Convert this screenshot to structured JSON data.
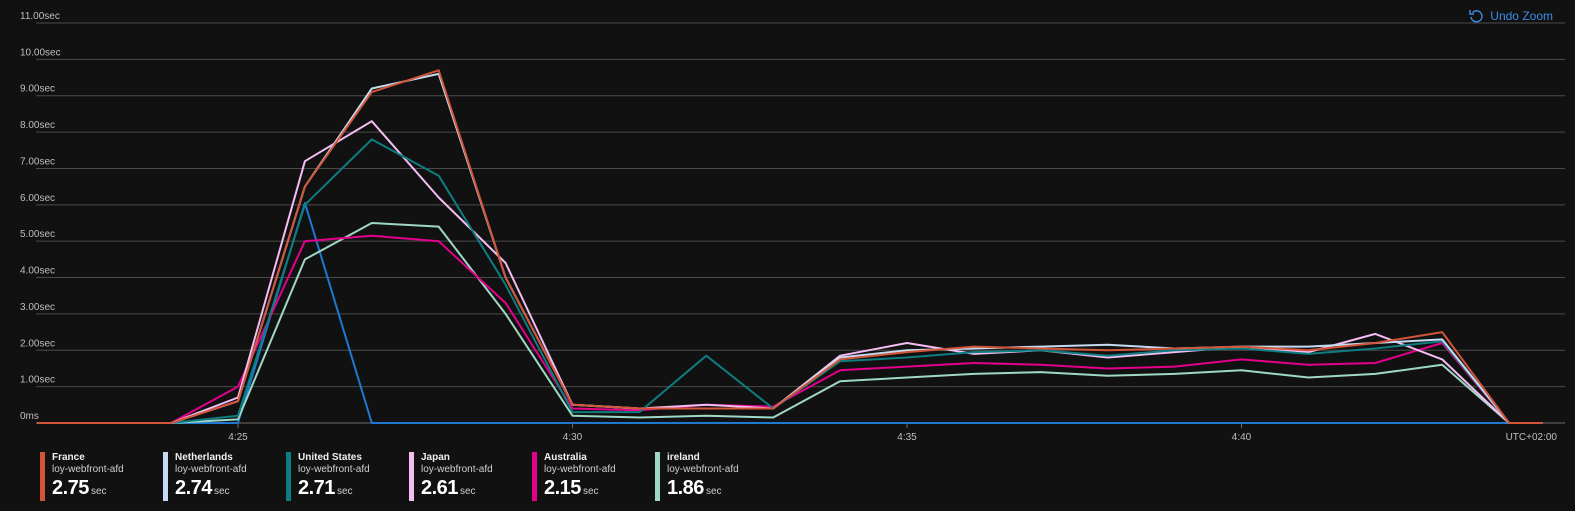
{
  "undo_zoom": {
    "label": "Undo Zoom",
    "icon": "undo-icon"
  },
  "chart_data": {
    "type": "line",
    "y_tick_labels": [
      "0ms",
      "1.00sec",
      "2.00sec",
      "3.00sec",
      "4.00sec",
      "5.00sec",
      "6.00sec",
      "7.00sec",
      "8.00sec",
      "9.00sec",
      "10.00sec",
      "11.00sec"
    ],
    "ylim": [
      0,
      11
    ],
    "x_tick_labels": [
      {
        "label": "4:25",
        "t": 25
      },
      {
        "label": "4:30",
        "t": 30
      },
      {
        "label": "4:35",
        "t": 35
      },
      {
        "label": "4:40",
        "t": 40
      }
    ],
    "timezone_label": "UTC+02:00",
    "x": [
      22,
      23,
      24,
      25,
      26,
      27,
      28,
      29,
      30,
      31,
      32,
      33,
      34,
      35,
      36,
      37,
      38,
      39,
      40,
      41,
      42,
      43,
      44,
      44.5
    ],
    "series": [
      {
        "name": "France",
        "resource": "loy-webfront-afd",
        "value": "2.75",
        "unit": "sec",
        "color": "#d2553a",
        "values": [
          0,
          0,
          0,
          0.6,
          6.5,
          9.1,
          9.7,
          4.0,
          0.5,
          0.4,
          0.4,
          0.4,
          1.75,
          1.95,
          2.1,
          2.05,
          2.0,
          2.05,
          2.1,
          2.0,
          2.2,
          2.5,
          0,
          0
        ]
      },
      {
        "name": "Netherlands",
        "resource": "loy-webfront-afd",
        "value": "2.74",
        "unit": "sec",
        "color": "#c5dbf2",
        "values": [
          0,
          0,
          0,
          0.6,
          6.5,
          9.2,
          9.6,
          4.0,
          0.5,
          0.4,
          0.4,
          0.4,
          1.8,
          2.0,
          2.05,
          2.1,
          2.15,
          2.05,
          2.1,
          2.1,
          2.2,
          2.3,
          0,
          0
        ]
      },
      {
        "name": "United States",
        "resource": "loy-webfront-afd",
        "value": "2.71",
        "unit": "sec",
        "color": "#0d7d80",
        "values": [
          0,
          0,
          0,
          0.2,
          6.0,
          7.8,
          6.8,
          3.8,
          0.3,
          0.3,
          1.85,
          0.4,
          1.7,
          1.8,
          1.95,
          2.0,
          1.85,
          2.0,
          2.05,
          1.9,
          2.05,
          2.25,
          0,
          0
        ]
      },
      {
        "name": "Japan",
        "resource": "loy-webfront-afd",
        "value": "2.61",
        "unit": "sec",
        "color": "#f4bdf2",
        "values": [
          0,
          0,
          0,
          0.7,
          7.2,
          8.3,
          6.2,
          4.4,
          0.5,
          0.4,
          0.5,
          0.4,
          1.85,
          2.2,
          1.9,
          2.0,
          1.8,
          1.95,
          2.1,
          1.95,
          2.45,
          1.75,
          0,
          0
        ]
      },
      {
        "name": "Australia",
        "resource": "loy-webfront-afd",
        "value": "2.15",
        "unit": "sec",
        "color": "#e3008c",
        "values": [
          0,
          0,
          0,
          1.0,
          5.0,
          5.15,
          5.0,
          3.3,
          0.4,
          0.35,
          0.5,
          0.45,
          1.45,
          1.55,
          1.65,
          1.6,
          1.5,
          1.55,
          1.75,
          1.6,
          1.65,
          2.2,
          0,
          0
        ]
      },
      {
        "name": "ireland",
        "resource": "loy-webfront-afd",
        "value": "1.86",
        "unit": "sec",
        "color": "#9fd8c3",
        "values": [
          0,
          0,
          0,
          0.1,
          4.5,
          5.5,
          5.4,
          3.0,
          0.2,
          0.15,
          0.2,
          0.15,
          1.15,
          1.25,
          1.35,
          1.4,
          1.3,
          1.35,
          1.45,
          1.25,
          1.35,
          1.6,
          0,
          0
        ]
      },
      {
        "color": "#1f78d1",
        "values": [
          0,
          0,
          0,
          0,
          6.05,
          0,
          0,
          0,
          0,
          0,
          0,
          0,
          0,
          0,
          0,
          0,
          0,
          0,
          0,
          0,
          0,
          0,
          0,
          0
        ]
      }
    ]
  }
}
